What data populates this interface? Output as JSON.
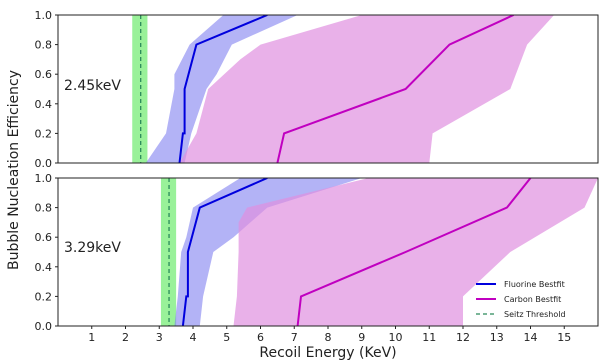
{
  "chart_data": {
    "type": "line",
    "xlabel": "Recoil Energy (KeV)",
    "ylabel": "Bubble Nucleation Efficiency",
    "xlim": [
      0,
      16
    ],
    "ylim": [
      0,
      1
    ],
    "x_ticks": [
      1,
      2,
      3,
      4,
      5,
      6,
      7,
      8,
      9,
      10,
      11,
      12,
      13,
      14,
      15
    ],
    "y_ticks": [
      0.0,
      0.2,
      0.4,
      0.6,
      0.8,
      1.0
    ],
    "grid": false,
    "legend": {
      "placement": "bottom-right of lower panel",
      "entries": [
        {
          "name": "Fluorine Bestfit",
          "color": "#0000dd",
          "style": "solid"
        },
        {
          "name": "Carbon Bestfit",
          "color": "#c000c0",
          "style": "solid"
        },
        {
          "name": "Seitz Threshold",
          "color": "#2a8a5a",
          "style": "dashed"
        }
      ]
    },
    "colors": {
      "fluorine_line": "#0000dd",
      "fluorine_band": "#8080f0",
      "carbon_line": "#c000c0",
      "carbon_band": "#e090e0",
      "seitz_line": "#2a8a5a",
      "seitz_band": "#80ee80"
    },
    "panels": [
      {
        "label": "2.45keV",
        "seitz_threshold": 2.45,
        "seitz_band": [
          2.2,
          2.65
        ],
        "series": [
          {
            "name": "Fluorine Bestfit",
            "x": [
              3.6,
              3.7,
              3.75,
              3.75,
              4.1,
              6.2
            ],
            "y": [
              0.0,
              0.2,
              0.2,
              0.5,
              0.8,
              1.0
            ]
          },
          {
            "name": "Carbon Bestfit",
            "x": [
              6.5,
              6.7,
              10.3,
              11.6,
              13.5
            ],
            "y": [
              0.0,
              0.2,
              0.5,
              0.8,
              1.0
            ]
          }
        ],
        "bands": [
          {
            "name": "Fluorine Bestfit",
            "upper_x": [
              2.6,
              3.2,
              3.45,
              3.45,
              3.9,
              4.9
            ],
            "lower_x": [
              3.75,
              3.95,
              4.4,
              4.7,
              5.15,
              7.1
            ],
            "y": [
              0.0,
              0.2,
              0.5,
              0.6,
              0.8,
              1.0
            ]
          },
          {
            "name": "Carbon Bestfit",
            "upper_x": [
              3.6,
              4.1,
              4.45,
              5.4,
              6.0,
              9.0
            ],
            "lower_x": [
              11.0,
              11.1,
              13.4,
              13.9,
              14.7
            ],
            "upper_y": [
              0.0,
              0.2,
              0.5,
              0.7,
              0.8,
              1.0
            ],
            "lower_y": [
              0.0,
              0.2,
              0.5,
              0.8,
              1.0
            ]
          }
        ]
      },
      {
        "label": "3.29keV",
        "seitz_threshold": 3.29,
        "seitz_band": [
          3.05,
          3.5
        ],
        "series": [
          {
            "name": "Fluorine Bestfit",
            "x": [
              3.7,
              3.8,
              3.85,
              3.85,
              4.2,
              6.2
            ],
            "y": [
              0.0,
              0.2,
              0.2,
              0.5,
              0.8,
              1.0
            ]
          },
          {
            "name": "Carbon Bestfit",
            "x": [
              7.1,
              7.2,
              10.3,
              13.3,
              14.0
            ],
            "y": [
              0.0,
              0.2,
              0.5,
              0.8,
              1.0
            ]
          }
        ],
        "bands": [
          {
            "name": "Fluorine Bestfit",
            "upper_x": [
              3.45,
              3.55,
              3.65,
              3.8,
              4.0,
              5.4
            ],
            "lower_x": [
              4.2,
              4.3,
              4.6,
              5.2,
              6.2,
              9.0
            ],
            "y": [
              0.0,
              0.2,
              0.5,
              0.6,
              0.8,
              1.0
            ]
          },
          {
            "name": "Carbon Bestfit",
            "upper_x": [
              5.2,
              5.3,
              5.35,
              5.35,
              5.6,
              9.2
            ],
            "lower_x": [
              12.0,
              12.0,
              13.4,
              15.6,
              16.0
            ],
            "upper_y": [
              0.0,
              0.2,
              0.5,
              0.7,
              0.8,
              1.0
            ],
            "lower_y": [
              0.0,
              0.2,
              0.5,
              0.8,
              1.0
            ]
          }
        ]
      }
    ]
  }
}
